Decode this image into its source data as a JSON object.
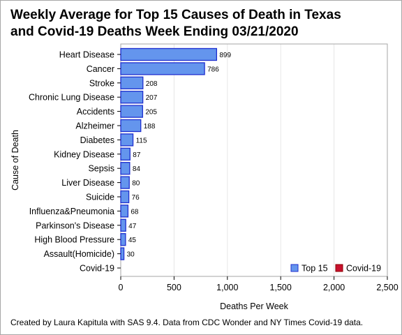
{
  "chart_data": {
    "type": "bar",
    "orientation": "horizontal",
    "title_lines": [
      "Weekly Average for Top 15 Causes of Death in Texas",
      "and Covid-19 Deaths Week Ending 03/21/2020"
    ],
    "xlabel": "Deaths Per Week",
    "ylabel": "Cause of Death",
    "xlim": [
      0,
      2500
    ],
    "xticks": [
      0,
      500,
      1000,
      1500,
      2000,
      2500
    ],
    "xtick_labels": [
      "0",
      "500",
      "1,000",
      "1,500",
      "2,000",
      "2,500"
    ],
    "grid": true,
    "categories": [
      "Heart Disease",
      "Cancer",
      "Stroke",
      "Chronic Lung Disease",
      "Accidents",
      "Alzheimer",
      "Diabetes",
      "Kidney Disease",
      "Sepsis",
      "Liver Disease",
      "Suicide",
      "Influenza&Pneumonia",
      "Parkinson's Disease",
      "High Blood Pressure",
      "Assault(Homicide)",
      "Covid-19"
    ],
    "series": [
      {
        "name": "Top 15",
        "color": "#6495ed",
        "stroke": "#1f2fcf",
        "values": [
          899,
          786,
          208,
          207,
          205,
          188,
          115,
          87,
          84,
          80,
          76,
          68,
          47,
          45,
          30,
          null
        ]
      },
      {
        "name": "Covid-19",
        "color": "#c8102e",
        "stroke": "#8b0000",
        "values": [
          null,
          null,
          null,
          null,
          null,
          null,
          null,
          null,
          null,
          null,
          null,
          null,
          null,
          null,
          null,
          0
        ]
      }
    ],
    "data_labels": [
      "899",
      "786",
      "208",
      "207",
      "205",
      "188",
      "115",
      "87",
      "84",
      "80",
      "76",
      "68",
      "47",
      "45",
      "30",
      ""
    ],
    "legend_position": "bottom-right"
  },
  "footnote": "Created by Laura Kapitula with SAS 9.4. Data from CDC Wonder and NY Times Covid-19 data."
}
